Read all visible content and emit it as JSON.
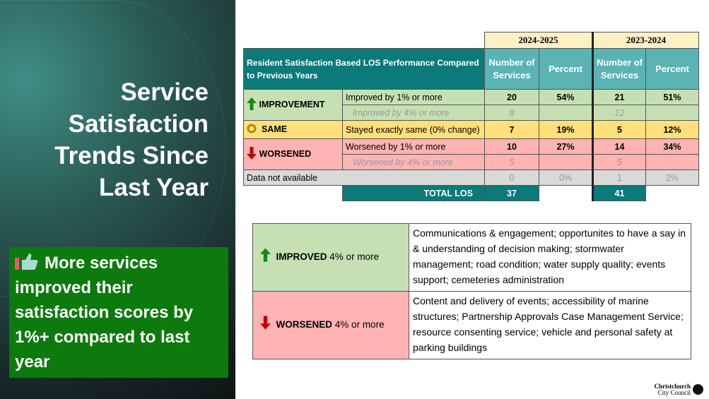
{
  "title": "Service Satisfaction Trends Since Last Year",
  "callout": {
    "icon": "thumbs-up-icon",
    "text": "More services improved their satisfaction scores by 1%+ compared to last year"
  },
  "table": {
    "years": [
      "2024-2025",
      "2023-2024"
    ],
    "heading": "Resident Satisfaction Based LOS Performance Compared to Previous Years",
    "col_num": "Number of Services",
    "col_pct": "Percent",
    "rows": {
      "improvement": {
        "label": "IMPROVEMENT",
        "main": "Improved by 1% or more",
        "sub": "Improved by 4% or more",
        "v": [
          "20",
          "54%",
          "21",
          "51%"
        ],
        "subv": [
          "8",
          "12"
        ]
      },
      "same": {
        "label": "SAME",
        "main": "Stayed exactly same (0% change)",
        "v": [
          "7",
          "19%",
          "5",
          "12%"
        ]
      },
      "worsened": {
        "label": "WORSENED",
        "main": "Worsened by 1% or more",
        "sub": "Worsened by 4% or more",
        "v": [
          "10",
          "27%",
          "14",
          "34%"
        ],
        "subv": [
          "5",
          "5"
        ]
      },
      "na": {
        "label": "Data not available",
        "v": [
          "0",
          "0%",
          "1",
          "2%"
        ]
      }
    },
    "total_label": "TOTAL LOS",
    "totals": [
      "37",
      "41"
    ]
  },
  "summary": {
    "improved_label": "IMPROVED",
    "improved_suffix": "4% or more",
    "improved_text": "Communications & engagement; opportunites to have a say in & understanding of decision making; stormwater management; road condition; water supply quality; events support; cemeteries administration",
    "worsened_label": "WORSENED",
    "worsened_suffix": "4% or more",
    "worsened_text": "Content and delivery of events; accessibility of marine structures; Partnership Approvals Case Management Service; resource consenting service; vehicle and personal safety at parking buildings"
  },
  "logo": {
    "line1": "Christchurch",
    "line2": "City Council"
  },
  "colors": {
    "teal": "#0b7a78",
    "green": "#0d7a0d",
    "up": "#138a13",
    "down": "#c00000"
  }
}
